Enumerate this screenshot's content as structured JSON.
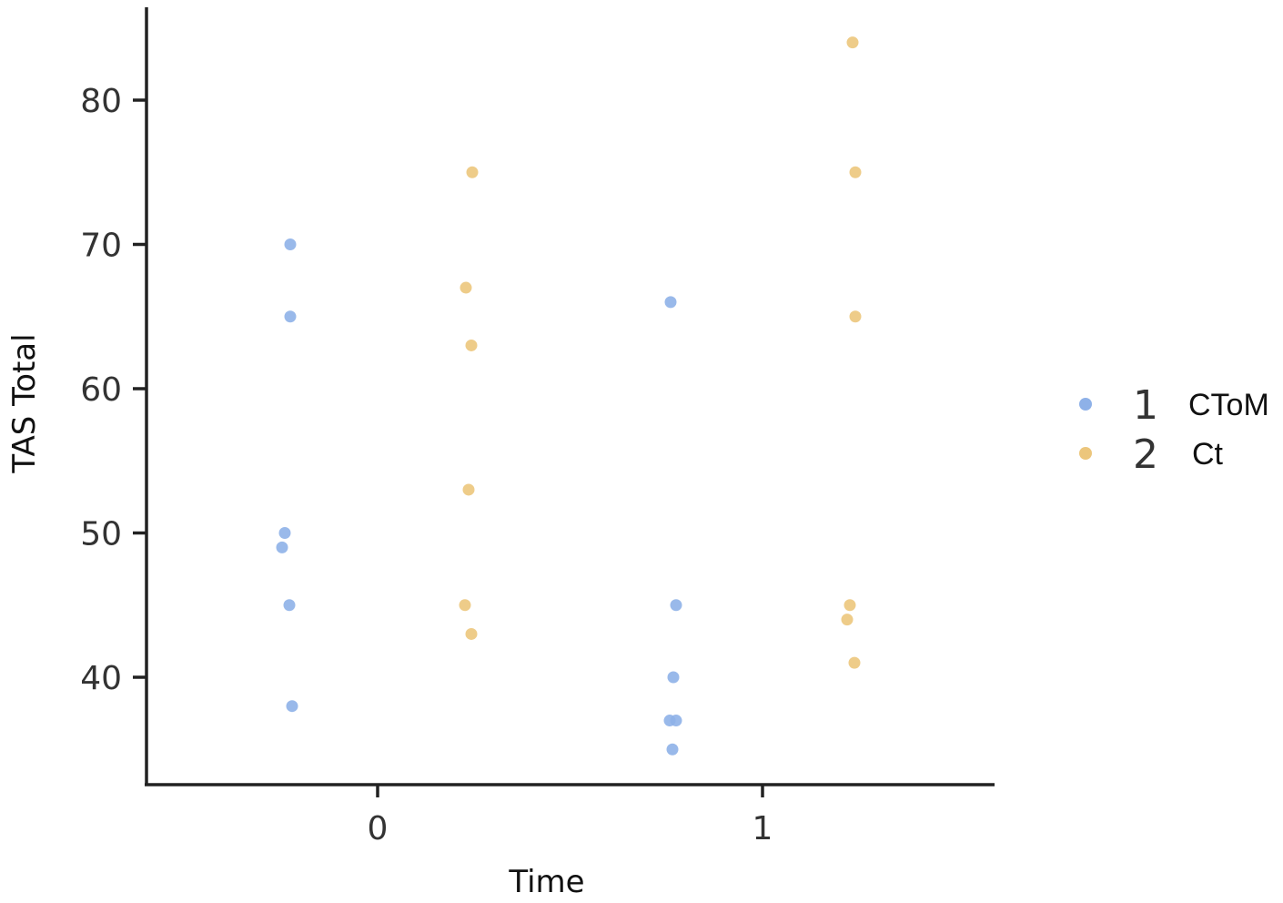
{
  "chart_data": {
    "type": "scatter",
    "xlabel": "Time",
    "ylabel": "TAS Total",
    "x_categories": [
      "0",
      "1"
    ],
    "y_ticks": [
      40,
      50,
      60,
      70,
      80
    ],
    "ylim": [
      32.5,
      87
    ],
    "grid": false,
    "legend_position": "right",
    "series": [
      {
        "key": "1",
        "name": "CToM",
        "color": "#8eb1e8",
        "points": [
          {
            "x": "0",
            "y": 70
          },
          {
            "x": "0",
            "y": 65
          },
          {
            "x": "0",
            "y": 50
          },
          {
            "x": "0",
            "y": 49
          },
          {
            "x": "0",
            "y": 45
          },
          {
            "x": "0",
            "y": 38
          },
          {
            "x": "1",
            "y": 66
          },
          {
            "x": "1",
            "y": 45
          },
          {
            "x": "1",
            "y": 40
          },
          {
            "x": "1",
            "y": 37
          },
          {
            "x": "1",
            "y": 37
          },
          {
            "x": "1",
            "y": 35
          }
        ]
      },
      {
        "key": "2",
        "name": "Ct",
        "color": "#ecc67c",
        "points": [
          {
            "x": "0",
            "y": 75
          },
          {
            "x": "0",
            "y": 67
          },
          {
            "x": "0",
            "y": 63
          },
          {
            "x": "0",
            "y": 53
          },
          {
            "x": "0",
            "y": 45
          },
          {
            "x": "0",
            "y": 43
          },
          {
            "x": "1",
            "y": 84
          },
          {
            "x": "1",
            "y": 75
          },
          {
            "x": "1",
            "y": 65
          },
          {
            "x": "1",
            "y": 45
          },
          {
            "x": "1",
            "y": 44
          },
          {
            "x": "1",
            "y": 41
          }
        ]
      }
    ]
  }
}
